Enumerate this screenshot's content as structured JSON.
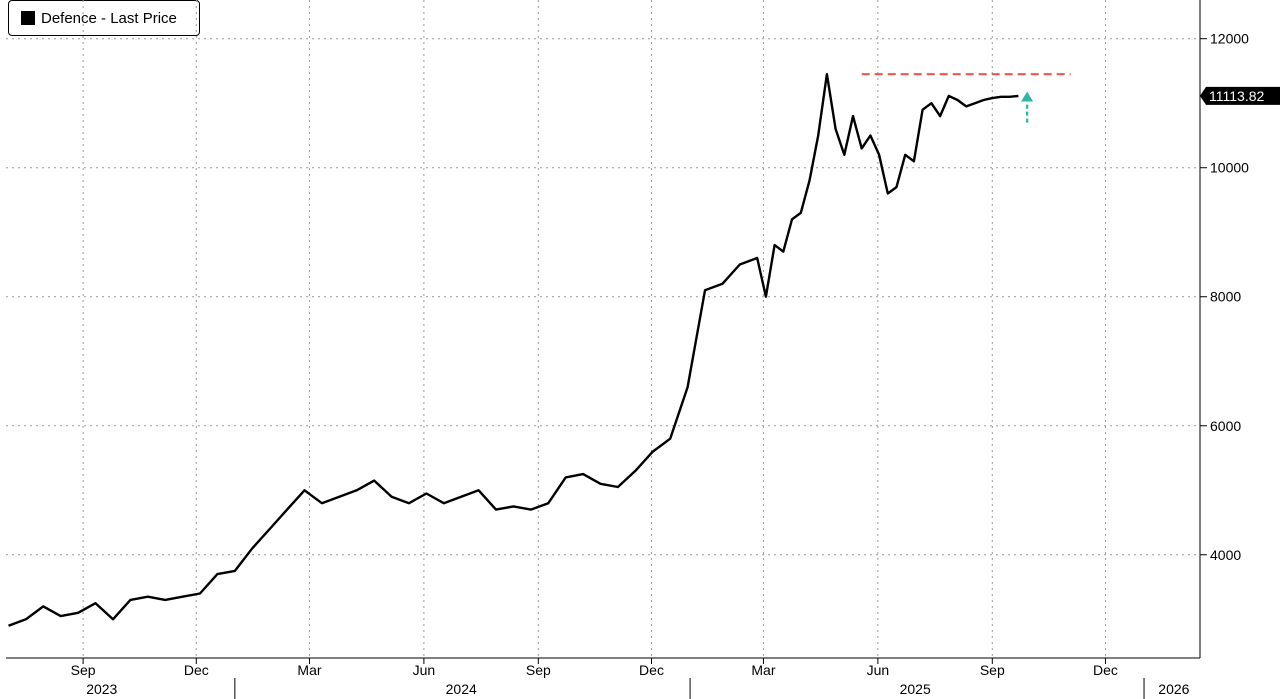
{
  "legend": {
    "label": "Defence - Last Price",
    "swatch_color": "#000000"
  },
  "last_price_label": "11113.82",
  "colors": {
    "line": "#000000",
    "resistance": "#e8584e",
    "arrow": "#2fb6a6"
  },
  "chart_data": {
    "type": "line",
    "series": [
      {
        "name": "Defence - Last Price",
        "x": [
          "2023-07-03",
          "2023-07-17",
          "2023-07-31",
          "2023-08-14",
          "2023-08-28",
          "2023-09-11",
          "2023-09-25",
          "2023-10-09",
          "2023-10-23",
          "2023-11-06",
          "2023-11-20",
          "2023-12-04",
          "2023-12-18",
          "2024-01-01",
          "2024-01-15",
          "2024-01-29",
          "2024-02-12",
          "2024-02-26",
          "2024-03-11",
          "2024-03-25",
          "2024-04-08",
          "2024-04-22",
          "2024-05-06",
          "2024-05-20",
          "2024-06-03",
          "2024-06-17",
          "2024-07-01",
          "2024-07-15",
          "2024-07-29",
          "2024-08-12",
          "2024-08-26",
          "2024-09-09",
          "2024-09-23",
          "2024-10-07",
          "2024-10-21",
          "2024-11-04",
          "2024-11-18",
          "2024-12-02",
          "2024-12-16",
          "2024-12-30",
          "2025-01-13",
          "2025-01-27",
          "2025-02-10",
          "2025-02-24",
          "2025-03-03",
          "2025-03-10",
          "2025-03-17",
          "2025-03-24",
          "2025-03-31",
          "2025-04-07",
          "2025-04-14",
          "2025-04-21",
          "2025-04-28",
          "2025-05-05",
          "2025-05-12",
          "2025-05-19",
          "2025-05-26",
          "2025-06-02",
          "2025-06-09",
          "2025-06-16",
          "2025-06-23",
          "2025-06-30",
          "2025-07-07",
          "2025-07-14",
          "2025-07-21",
          "2025-07-28",
          "2025-08-04",
          "2025-08-11",
          "2025-08-18",
          "2025-08-25",
          "2025-09-01",
          "2025-09-08",
          "2025-09-15",
          "2025-09-22"
        ],
        "values": [
          2900,
          3000,
          3200,
          3050,
          3100,
          3250,
          3000,
          3300,
          3350,
          3300,
          3350,
          3400,
          3700,
          3750,
          4100,
          4400,
          4700,
          5000,
          4800,
          4900,
          5000,
          5150,
          4900,
          4800,
          4950,
          4800,
          4900,
          5000,
          4700,
          4750,
          4700,
          4800,
          5200,
          5250,
          5100,
          5050,
          5300,
          5600,
          5800,
          6600,
          8100,
          8200,
          8500,
          8600,
          8000,
          8800,
          8700,
          9200,
          9300,
          9800,
          10500,
          11450,
          10600,
          10200,
          10800,
          10300,
          10500,
          10200,
          9600,
          9700,
          10200,
          10100,
          10900,
          11000,
          10800,
          11113.82,
          11050,
          10950,
          11000,
          11050,
          11080,
          11100,
          11100,
          11113.82
        ]
      }
    ],
    "annotations": [
      {
        "type": "hline",
        "y": 11450,
        "x_start": "2025-05-19",
        "x_end": "2025-11-03",
        "style": "dashed",
        "color": "#e8584e"
      },
      {
        "type": "arrow",
        "x": "2025-09-29",
        "y_from": 10700,
        "y_to": 11150,
        "color": "#2fb6a6"
      }
    ],
    "y_ticks": [
      4000,
      6000,
      8000,
      10000,
      12000
    ],
    "y_tick_labels": [
      "4000",
      "6000",
      "8000",
      "10000",
      "12000"
    ],
    "ylim": [
      2400,
      12600
    ],
    "xlim": [
      "2023-07-01",
      "2026-02-15"
    ],
    "x_ticks": [
      {
        "date": "2023-09-01",
        "label": "Sep"
      },
      {
        "date": "2023-12-01",
        "label": "Dec"
      },
      {
        "date": "2024-03-01",
        "label": "Mar"
      },
      {
        "date": "2024-06-01",
        "label": "Jun"
      },
      {
        "date": "2024-09-01",
        "label": "Sep"
      },
      {
        "date": "2024-12-01",
        "label": "Dec"
      },
      {
        "date": "2025-03-01",
        "label": "Mar"
      },
      {
        "date": "2025-06-01",
        "label": "Jun"
      },
      {
        "date": "2025-09-01",
        "label": "Sep"
      },
      {
        "date": "2025-12-01",
        "label": "Dec"
      }
    ],
    "year_labels": [
      {
        "label": "2023",
        "center": "2023-09-16"
      },
      {
        "label": "2024",
        "center": "2024-07-01"
      },
      {
        "label": "2025",
        "center": "2025-07-01"
      },
      {
        "label": "2026",
        "center": "2026-01-25"
      }
    ],
    "year_separators": [
      "2024-01-01",
      "2025-01-01",
      "2026-01-01"
    ],
    "grid": true,
    "legend_position": "top-left"
  }
}
